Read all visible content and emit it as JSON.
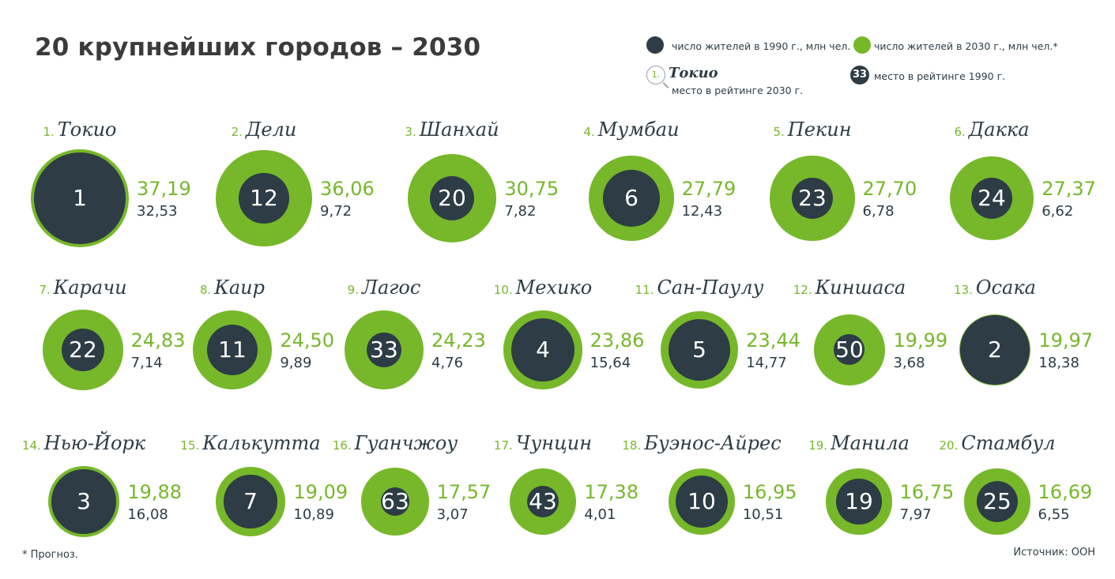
{
  "title": "20 крупнейших городов – 2030",
  "legend": {
    "dark_label": "число жителей в 1990 г., млн чел.",
    "green_label": "число жителей в 2030 г., млн чел.*",
    "rank2030_number": "1.",
    "rank2030_city": "Токио",
    "rank2030_label": "место в рейтинге 2030 г.",
    "rank1990_badge": "33",
    "rank1990_label": "место в рейтинге 1990 г."
  },
  "colors": {
    "green": "#76b82a",
    "dark": "#2d3c45"
  },
  "footnote": "* Прогноз.",
  "source": "Источник: ООН",
  "chart_data": {
    "type": "bubble",
    "title": "20 крупнейших городов – 2030",
    "cities": [
      {
        "rank": "1.",
        "name": "Токио",
        "pop2030": 37.19,
        "pop1990": 32.53,
        "rank1990": "1",
        "label2030": "37,19",
        "label1990": "32,53"
      },
      {
        "rank": "2.",
        "name": "Дели",
        "pop2030": 36.06,
        "pop1990": 9.72,
        "rank1990": "12",
        "label2030": "36,06",
        "label1990": "9,72"
      },
      {
        "rank": "3.",
        "name": "Шанхай",
        "pop2030": 30.75,
        "pop1990": 7.82,
        "rank1990": "20",
        "label2030": "30,75",
        "label1990": "7,82"
      },
      {
        "rank": "4.",
        "name": "Мумбаи",
        "pop2030": 27.79,
        "pop1990": 12.43,
        "rank1990": "6",
        "label2030": "27,79",
        "label1990": "12,43"
      },
      {
        "rank": "5.",
        "name": "Пекин",
        "pop2030": 27.7,
        "pop1990": 6.78,
        "rank1990": "23",
        "label2030": "27,70",
        "label1990": "6,78"
      },
      {
        "rank": "6.",
        "name": "Дакка",
        "pop2030": 27.37,
        "pop1990": 6.62,
        "rank1990": "24",
        "label2030": "27,37",
        "label1990": "6,62"
      },
      {
        "rank": "7.",
        "name": "Карачи",
        "pop2030": 24.83,
        "pop1990": 7.14,
        "rank1990": "22",
        "label2030": "24,83",
        "label1990": "7,14"
      },
      {
        "rank": "8.",
        "name": "Каир",
        "pop2030": 24.5,
        "pop1990": 9.89,
        "rank1990": "11",
        "label2030": "24,50",
        "label1990": "9,89"
      },
      {
        "rank": "9.",
        "name": "Лагос",
        "pop2030": 24.23,
        "pop1990": 4.76,
        "rank1990": "33",
        "label2030": "24,23",
        "label1990": "4,76"
      },
      {
        "rank": "10.",
        "name": "Мехико",
        "pop2030": 23.86,
        "pop1990": 15.64,
        "rank1990": "4",
        "label2030": "23,86",
        "label1990": "15,64"
      },
      {
        "rank": "11.",
        "name": "Сан-Паулу",
        "pop2030": 23.44,
        "pop1990": 14.77,
        "rank1990": "5",
        "label2030": "23,44",
        "label1990": "14,77"
      },
      {
        "rank": "12.",
        "name": "Киншаса",
        "pop2030": 19.99,
        "pop1990": 3.68,
        "rank1990": "50",
        "label2030": "19,99",
        "label1990": "3,68"
      },
      {
        "rank": "13.",
        "name": "Осака",
        "pop2030": 19.97,
        "pop1990": 18.38,
        "rank1990": "2",
        "label2030": "19,97",
        "label1990": "18,38"
      },
      {
        "rank": "14.",
        "name": "Нью-Йорк",
        "pop2030": 19.88,
        "pop1990": 16.08,
        "rank1990": "3",
        "label2030": "19,88",
        "label1990": "16,08"
      },
      {
        "rank": "15.",
        "name": "Калькутта",
        "pop2030": 19.09,
        "pop1990": 10.89,
        "rank1990": "7",
        "label2030": "19,09",
        "label1990": "10,89"
      },
      {
        "rank": "16.",
        "name": "Гуанчжоу",
        "pop2030": 17.57,
        "pop1990": 3.07,
        "rank1990": "63",
        "label2030": "17,57",
        "label1990": "3,07"
      },
      {
        "rank": "17.",
        "name": "Чунцин",
        "pop2030": 17.38,
        "pop1990": 4.01,
        "rank1990": "43",
        "label2030": "17,38",
        "label1990": "4,01"
      },
      {
        "rank": "18.",
        "name": "Буэнос-Айрес",
        "pop2030": 16.95,
        "pop1990": 10.51,
        "rank1990": "10",
        "label2030": "16,95",
        "label1990": "10,51"
      },
      {
        "rank": "19.",
        "name": "Манила",
        "pop2030": 16.75,
        "pop1990": 7.97,
        "rank1990": "19",
        "label2030": "16,75",
        "label1990": "7,97"
      },
      {
        "rank": "20.",
        "name": "Стамбул",
        "pop2030": 16.69,
        "pop1990": 6.55,
        "rank1990": "25",
        "label2030": "16,69",
        "label1990": "6,55"
      }
    ]
  }
}
